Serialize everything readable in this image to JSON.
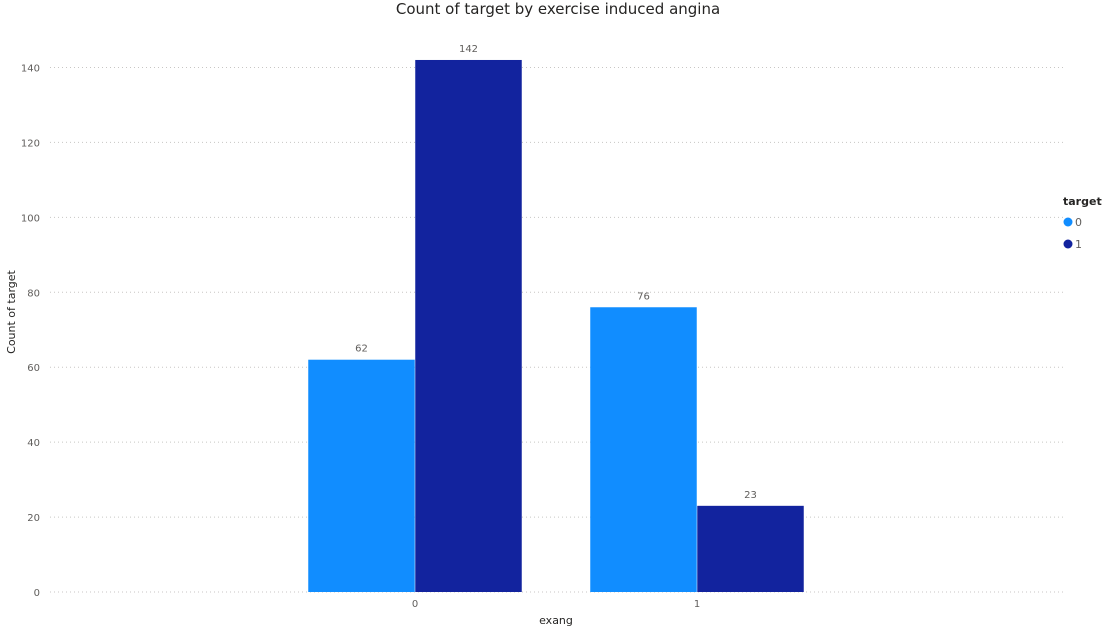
{
  "chart_data": {
    "type": "bar",
    "title": "Count of target by exercise induced angina",
    "xlabel": "exang",
    "ylabel": "Count of target",
    "categories": [
      "0",
      "1"
    ],
    "ylim": [
      0,
      150
    ],
    "yticks": [
      0,
      20,
      40,
      60,
      80,
      100,
      120,
      140
    ],
    "grid": true,
    "legend": {
      "title": "target",
      "placement": "top-right"
    },
    "series": [
      {
        "name": "0",
        "values": [
          62,
          76
        ],
        "color": "#118dff"
      },
      {
        "name": "1",
        "values": [
          142,
          23
        ],
        "color": "#12239e"
      }
    ]
  }
}
